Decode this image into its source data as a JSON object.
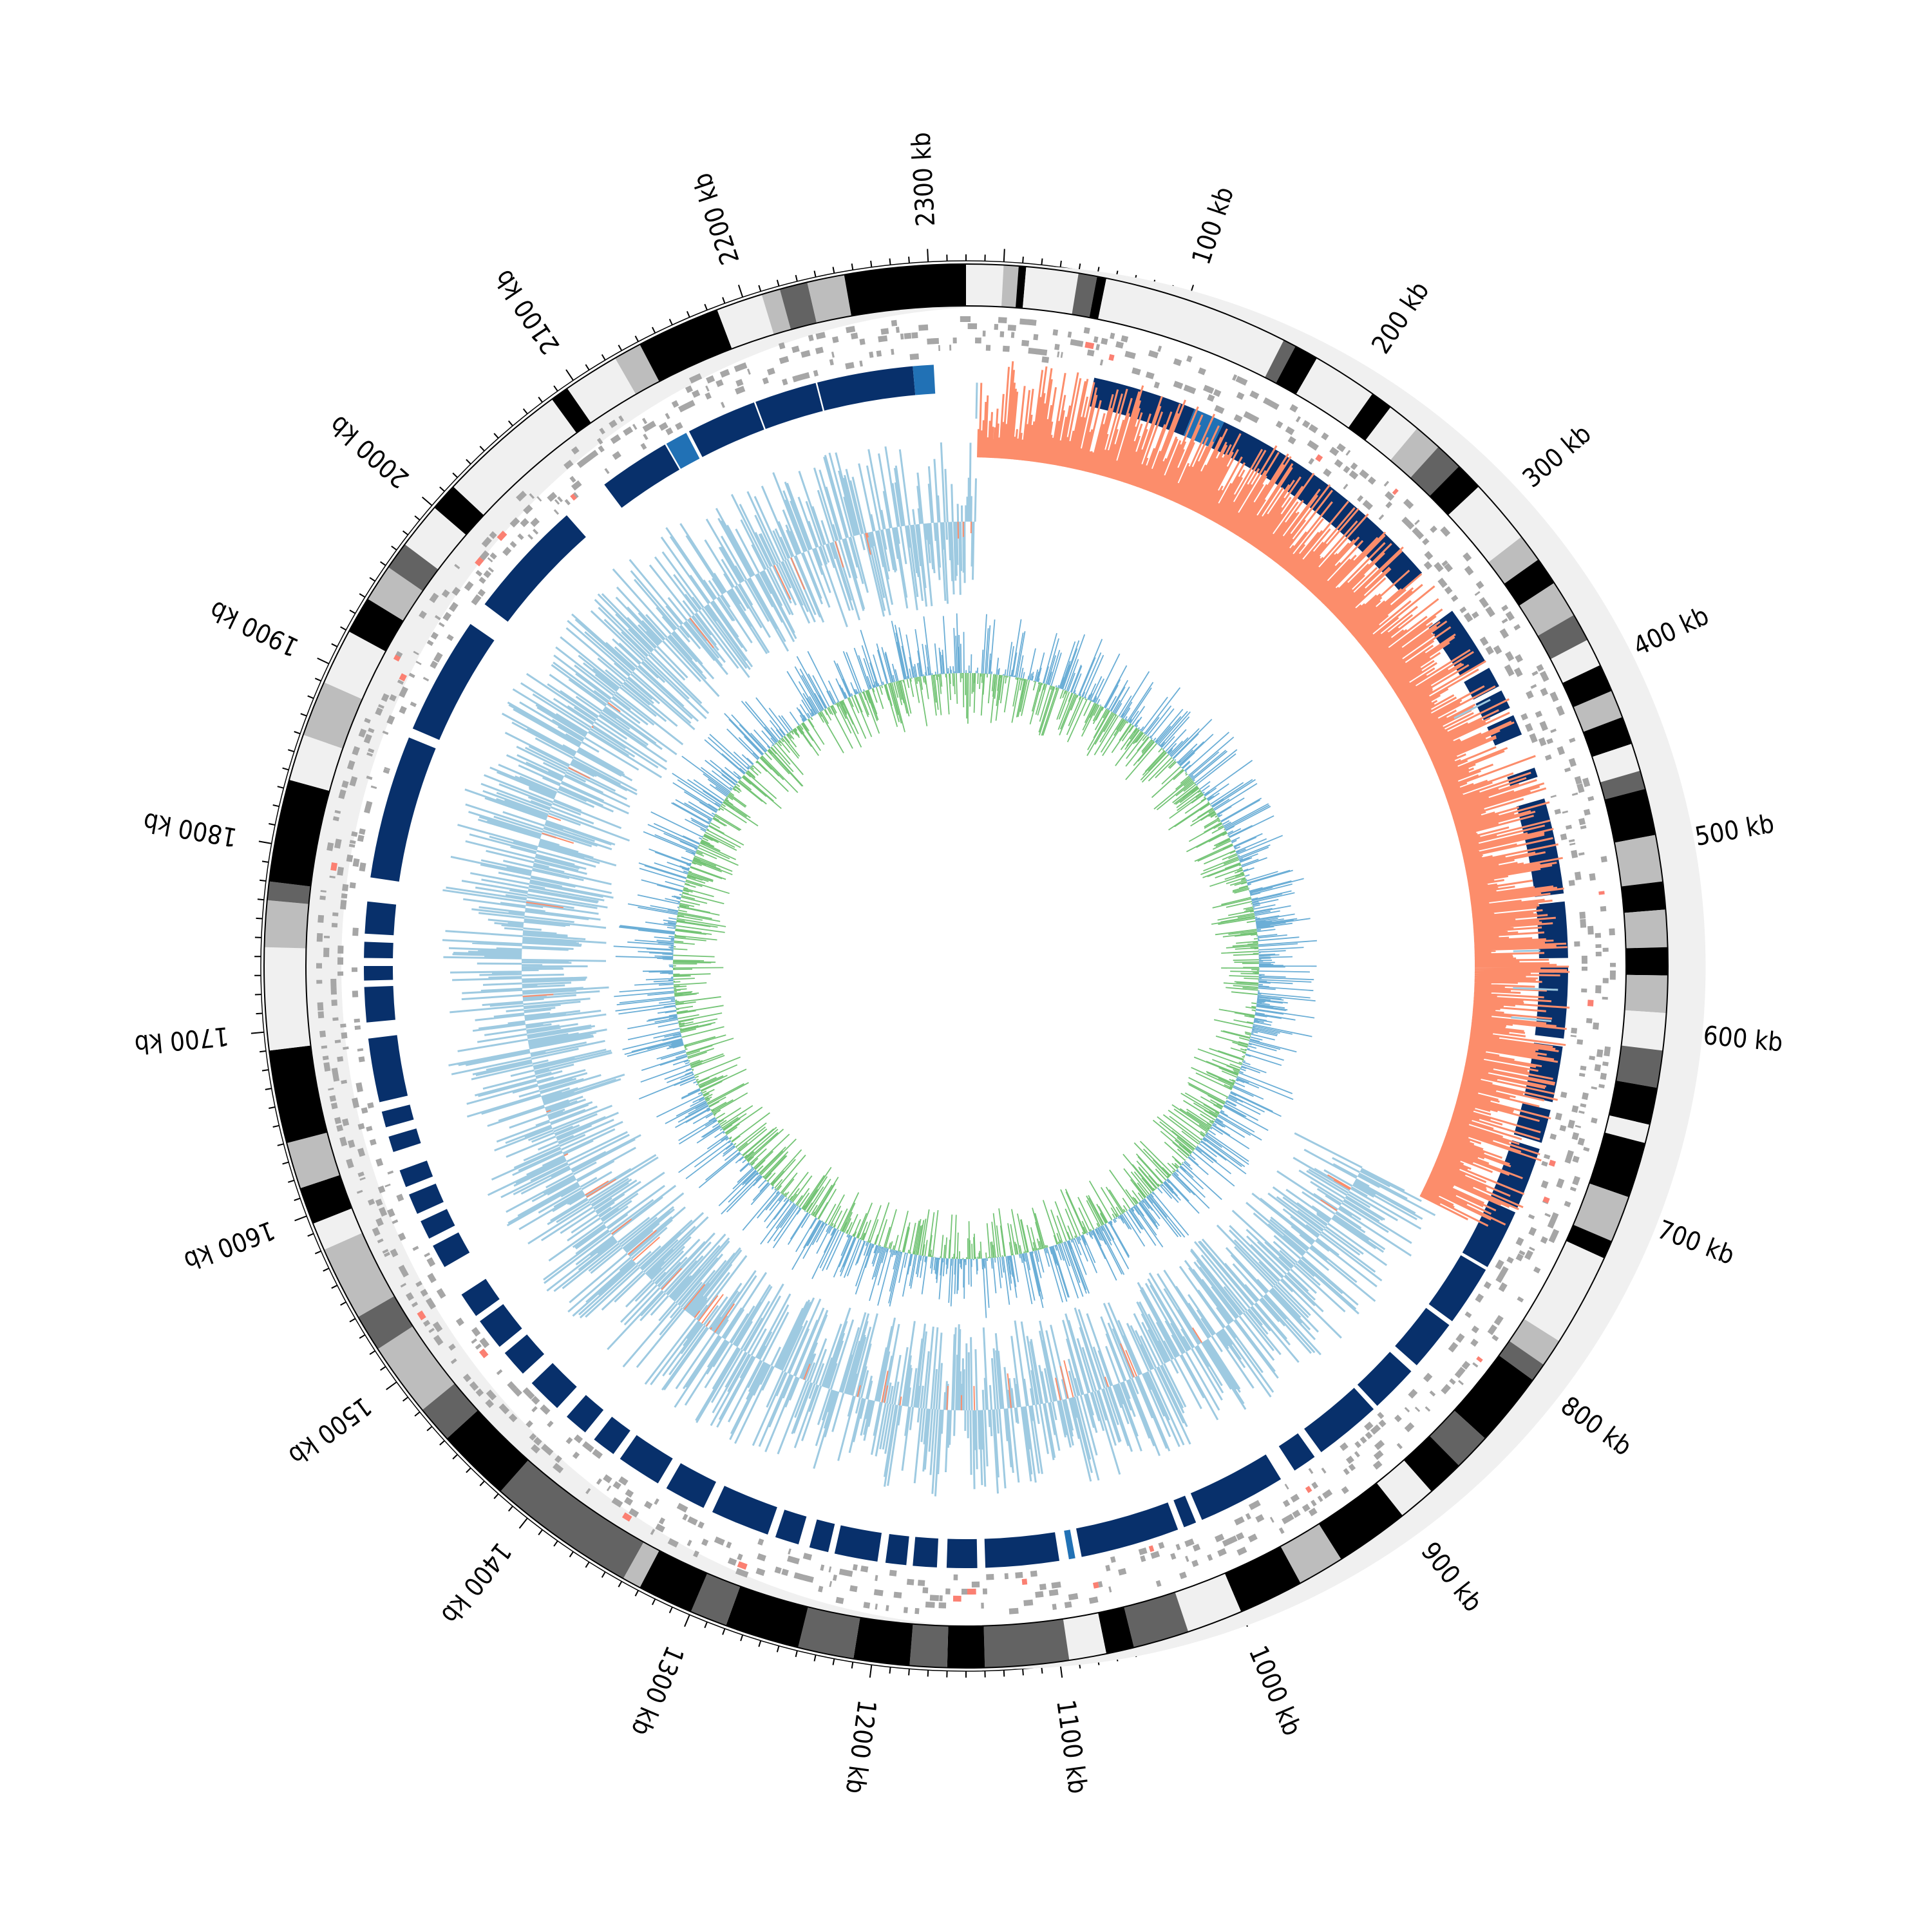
{
  "genome": {
    "total_kb": 2340,
    "start_offset_kb": 2320,
    "direction": "clockwise",
    "tick_labels": [
      {
        "kb": 100,
        "text": "100 kb"
      },
      {
        "kb": 200,
        "text": "200 kb"
      },
      {
        "kb": 300,
        "text": "300 kb"
      },
      {
        "kb": 400,
        "text": "400 kb"
      },
      {
        "kb": 500,
        "text": "500 kb"
      },
      {
        "kb": 600,
        "text": "600 kb"
      },
      {
        "kb": 700,
        "text": "700 kb"
      },
      {
        "kb": 800,
        "text": "800 kb"
      },
      {
        "kb": 900,
        "text": "900 kb"
      },
      {
        "kb": 1000,
        "text": "1000 kb"
      },
      {
        "kb": 1100,
        "text": "1100 kb"
      },
      {
        "kb": 1200,
        "text": "1200 kb"
      },
      {
        "kb": 1300,
        "text": "1300 kb"
      },
      {
        "kb": 1400,
        "text": "1400 kb"
      },
      {
        "kb": 1500,
        "text": "1500 kb"
      },
      {
        "kb": 1600,
        "text": "1600 kb"
      },
      {
        "kb": 1700,
        "text": "1700 kb"
      },
      {
        "kb": 1800,
        "text": "1800 kb"
      },
      {
        "kb": 1900,
        "text": "1900 kb"
      },
      {
        "kb": 2000,
        "text": "2000 kb"
      },
      {
        "kb": 2100,
        "text": "2100 kb"
      },
      {
        "kb": 2200,
        "text": "2200 kb"
      },
      {
        "kb": 2300,
        "text": "2300 kb"
      }
    ],
    "minor_tick_kb": 10
  },
  "colors": {
    "band_white": "#f0f0f0",
    "band_light": "#bdbdbd",
    "band_mid": "#636363",
    "band_black": "#000000",
    "gene_gray": "#a6a6a6",
    "gene_red": "#fb8072",
    "synteny_blue": "#08306b",
    "synteny_light_blue": "#2171b5",
    "skew_positive": "#fc8d6b",
    "skew_negative": "#9ecae1",
    "content_blue": "#6baed6",
    "content_green": "#74c476"
  },
  "tracks": {
    "karyotype": {
      "name": "karyotype-band-ring",
      "bands": [
        {
          "start": 2320,
          "end": 2340,
          "shade": "white"
        },
        {
          "start": 0,
          "end": 8,
          "shade": "light"
        },
        {
          "start": 8,
          "end": 12,
          "shade": "black"
        },
        {
          "start": 12,
          "end": 40,
          "shade": "white"
        },
        {
          "start": 40,
          "end": 50,
          "shade": "mid"
        },
        {
          "start": 50,
          "end": 55,
          "shade": "black"
        },
        {
          "start": 55,
          "end": 155,
          "shade": "white"
        },
        {
          "start": 155,
          "end": 162,
          "shade": "mid"
        },
        {
          "start": 162,
          "end": 175,
          "shade": "black"
        },
        {
          "start": 175,
          "end": 210,
          "shade": "white"
        },
        {
          "start": 210,
          "end": 222,
          "shade": "black"
        },
        {
          "start": 222,
          "end": 240,
          "shade": "white"
        },
        {
          "start": 240,
          "end": 255,
          "shade": "light"
        },
        {
          "start": 255,
          "end": 270,
          "shade": "mid"
        },
        {
          "start": 270,
          "end": 285,
          "shade": "black"
        },
        {
          "start": 285,
          "end": 320,
          "shade": "white"
        },
        {
          "start": 320,
          "end": 335,
          "shade": "light"
        },
        {
          "start": 335,
          "end": 350,
          "shade": "black"
        },
        {
          "start": 350,
          "end": 370,
          "shade": "light"
        },
        {
          "start": 370,
          "end": 385,
          "shade": "mid"
        },
        {
          "start": 385,
          "end": 400,
          "shade": "white"
        },
        {
          "start": 400,
          "end": 415,
          "shade": "black"
        },
        {
          "start": 415,
          "end": 430,
          "shade": "light"
        },
        {
          "start": 430,
          "end": 445,
          "shade": "black"
        },
        {
          "start": 445,
          "end": 460,
          "shade": "white"
        },
        {
          "start": 460,
          "end": 470,
          "shade": "mid"
        },
        {
          "start": 470,
          "end": 495,
          "shade": "black"
        },
        {
          "start": 495,
          "end": 520,
          "shade": "light"
        },
        {
          "start": 520,
          "end": 535,
          "shade": "black"
        },
        {
          "start": 535,
          "end": 555,
          "shade": "light"
        },
        {
          "start": 555,
          "end": 570,
          "shade": "black"
        },
        {
          "start": 570,
          "end": 590,
          "shade": "light"
        },
        {
          "start": 590,
          "end": 610,
          "shade": "white"
        },
        {
          "start": 610,
          "end": 630,
          "shade": "mid"
        },
        {
          "start": 630,
          "end": 650,
          "shade": "black"
        },
        {
          "start": 650,
          "end": 660,
          "shade": "white"
        },
        {
          "start": 660,
          "end": 690,
          "shade": "black"
        },
        {
          "start": 690,
          "end": 715,
          "shade": "light"
        },
        {
          "start": 715,
          "end": 725,
          "shade": "black"
        },
        {
          "start": 725,
          "end": 775,
          "shade": "white"
        },
        {
          "start": 775,
          "end": 790,
          "shade": "light"
        },
        {
          "start": 790,
          "end": 800,
          "shade": "mid"
        },
        {
          "start": 800,
          "end": 840,
          "shade": "black"
        },
        {
          "start": 840,
          "end": 860,
          "shade": "mid"
        },
        {
          "start": 860,
          "end": 880,
          "shade": "black"
        },
        {
          "start": 880,
          "end": 900,
          "shade": "white"
        },
        {
          "start": 900,
          "end": 940,
          "shade": "black"
        },
        {
          "start": 940,
          "end": 965,
          "shade": "light"
        },
        {
          "start": 965,
          "end": 1000,
          "shade": "black"
        },
        {
          "start": 1000,
          "end": 1030,
          "shade": "white"
        },
        {
          "start": 1030,
          "end": 1060,
          "shade": "mid"
        },
        {
          "start": 1060,
          "end": 1075,
          "shade": "black"
        },
        {
          "start": 1075,
          "end": 1095,
          "shade": "white"
        },
        {
          "start": 1095,
          "end": 1140,
          "shade": "mid"
        },
        {
          "start": 1140,
          "end": 1160,
          "shade": "black"
        },
        {
          "start": 1160,
          "end": 1180,
          "shade": "mid"
        },
        {
          "start": 1180,
          "end": 1210,
          "shade": "black"
        },
        {
          "start": 1210,
          "end": 1240,
          "shade": "mid"
        },
        {
          "start": 1240,
          "end": 1280,
          "shade": "black"
        },
        {
          "start": 1280,
          "end": 1300,
          "shade": "mid"
        },
        {
          "start": 1300,
          "end": 1330,
          "shade": "black"
        },
        {
          "start": 1330,
          "end": 1340,
          "shade": "light"
        },
        {
          "start": 1340,
          "end": 1420,
          "shade": "mid"
        },
        {
          "start": 1420,
          "end": 1460,
          "shade": "black"
        },
        {
          "start": 1460,
          "end": 1480,
          "shade": "mid"
        },
        {
          "start": 1480,
          "end": 1520,
          "shade": "light"
        },
        {
          "start": 1520,
          "end": 1540,
          "shade": "mid"
        },
        {
          "start": 1540,
          "end": 1580,
          "shade": "light"
        },
        {
          "start": 1580,
          "end": 1595,
          "shade": "white"
        },
        {
          "start": 1595,
          "end": 1615,
          "shade": "black"
        },
        {
          "start": 1615,
          "end": 1640,
          "shade": "light"
        },
        {
          "start": 1640,
          "end": 1690,
          "shade": "black"
        },
        {
          "start": 1690,
          "end": 1745,
          "shade": "white"
        },
        {
          "start": 1745,
          "end": 1770,
          "shade": "light"
        },
        {
          "start": 1770,
          "end": 1780,
          "shade": "mid"
        },
        {
          "start": 1780,
          "end": 1835,
          "shade": "black"
        },
        {
          "start": 1835,
          "end": 1860,
          "shade": "white"
        },
        {
          "start": 1860,
          "end": 1890,
          "shade": "light"
        },
        {
          "start": 1890,
          "end": 1920,
          "shade": "white"
        },
        {
          "start": 1920,
          "end": 1940,
          "shade": "black"
        },
        {
          "start": 1940,
          "end": 1960,
          "shade": "light"
        },
        {
          "start": 1960,
          "end": 1975,
          "shade": "mid"
        },
        {
          "start": 1975,
          "end": 2000,
          "shade": "white"
        },
        {
          "start": 2000,
          "end": 2015,
          "shade": "black"
        },
        {
          "start": 2015,
          "end": 2085,
          "shade": "white"
        },
        {
          "start": 2085,
          "end": 2095,
          "shade": "black"
        },
        {
          "start": 2095,
          "end": 2125,
          "shade": "white"
        },
        {
          "start": 2125,
          "end": 2140,
          "shade": "light"
        },
        {
          "start": 2140,
          "end": 2185,
          "shade": "black"
        },
        {
          "start": 2185,
          "end": 2210,
          "shade": "white"
        },
        {
          "start": 2210,
          "end": 2220,
          "shade": "light"
        },
        {
          "start": 2220,
          "end": 2235,
          "shade": "mid"
        },
        {
          "start": 2235,
          "end": 2255,
          "shade": "light"
        },
        {
          "start": 2255,
          "end": 2320,
          "shade": "black"
        }
      ]
    },
    "synteny": {
      "name": "synteny-block-ring",
      "blocks": [
        {
          "start": 2142,
          "end": 2186,
          "tone": "dark"
        },
        {
          "start": 2187,
          "end": 2226,
          "tone": "dark"
        },
        {
          "start": 2227,
          "end": 2287,
          "tone": "dark"
        },
        {
          "start": 2287,
          "end": 2300,
          "tone": "light"
        },
        {
          "start": 60,
          "end": 125,
          "tone": "dark"
        },
        {
          "start": 125,
          "end": 145,
          "tone": "light"
        },
        {
          "start": 145,
          "end": 300,
          "tone": "dark"
        },
        {
          "start": 330,
          "end": 368,
          "tone": "dark"
        },
        {
          "start": 372,
          "end": 385,
          "tone": "dark"
        },
        {
          "start": 388,
          "end": 400,
          "tone": "dark"
        },
        {
          "start": 405,
          "end": 418,
          "tone": "dark"
        },
        {
          "start": 440,
          "end": 446,
          "tone": "dark"
        },
        {
          "start": 460,
          "end": 520,
          "tone": "dark"
        },
        {
          "start": 525,
          "end": 560,
          "tone": "dark"
        },
        {
          "start": 565,
          "end": 610,
          "tone": "dark"
        },
        {
          "start": 615,
          "end": 650,
          "tone": "dark"
        },
        {
          "start": 655,
          "end": 676,
          "tone": "dark"
        },
        {
          "start": 680,
          "end": 720,
          "tone": "dark"
        },
        {
          "start": 722,
          "end": 760,
          "tone": "dark"
        },
        {
          "start": 762,
          "end": 800,
          "tone": "dark"
        },
        {
          "start": 803,
          "end": 835,
          "tone": "dark"
        },
        {
          "start": 840,
          "end": 870,
          "tone": "dark"
        },
        {
          "start": 873,
          "end": 915,
          "tone": "dark"
        },
        {
          "start": 920,
          "end": 935,
          "tone": "dark"
        },
        {
          "start": 945,
          "end": 1000,
          "tone": "dark"
        },
        {
          "start": 1004,
          "end": 1012,
          "tone": "dark"
        },
        {
          "start": 1016,
          "end": 1078,
          "tone": "dark"
        },
        {
          "start": 1082,
          "end": 1086,
          "tone": "light"
        },
        {
          "start": 1092,
          "end": 1138,
          "tone": "dark"
        },
        {
          "start": 1143,
          "end": 1162,
          "tone": "dark"
        },
        {
          "start": 1168,
          "end": 1183,
          "tone": "dark"
        },
        {
          "start": 1187,
          "end": 1200,
          "tone": "dark"
        },
        {
          "start": 1205,
          "end": 1232,
          "tone": "dark"
        },
        {
          "start": 1236,
          "end": 1248,
          "tone": "dark"
        },
        {
          "start": 1255,
          "end": 1270,
          "tone": "dark"
        },
        {
          "start": 1275,
          "end": 1312,
          "tone": "dark"
        },
        {
          "start": 1318,
          "end": 1344,
          "tone": "dark"
        },
        {
          "start": 1350,
          "end": 1378,
          "tone": "dark"
        },
        {
          "start": 1383,
          "end": 1398,
          "tone": "dark"
        },
        {
          "start": 1405,
          "end": 1420,
          "tone": "dark"
        },
        {
          "start": 1428,
          "end": 1450,
          "tone": "dark"
        },
        {
          "start": 1458,
          "end": 1475,
          "tone": "dark"
        },
        {
          "start": 1480,
          "end": 1500,
          "tone": "dark"
        },
        {
          "start": 1504,
          "end": 1520,
          "tone": "dark"
        },
        {
          "start": 1540,
          "end": 1555,
          "tone": "dark"
        },
        {
          "start": 1560,
          "end": 1572,
          "tone": "dark"
        },
        {
          "start": 1577,
          "end": 1590,
          "tone": "dark"
        },
        {
          "start": 1595,
          "end": 1606,
          "tone": "dark"
        },
        {
          "start": 1618,
          "end": 1628,
          "tone": "dark"
        },
        {
          "start": 1634,
          "end": 1644,
          "tone": "dark"
        },
        {
          "start": 1650,
          "end": 1690,
          "tone": "dark"
        },
        {
          "start": 1700,
          "end": 1722,
          "tone": "dark"
        },
        {
          "start": 1726,
          "end": 1735,
          "tone": "dark"
        },
        {
          "start": 1740,
          "end": 1750,
          "tone": "dark"
        },
        {
          "start": 1755,
          "end": 1775,
          "tone": "dark"
        },
        {
          "start": 1790,
          "end": 1880,
          "tone": "dark"
        },
        {
          "start": 1886,
          "end": 1960,
          "tone": "dark"
        },
        {
          "start": 1975,
          "end": 2050,
          "tone": "dark"
        },
        {
          "start": 2080,
          "end": 2125,
          "tone": "dark"
        },
        {
          "start": 2126,
          "end": 2140,
          "tone": "light"
        }
      ]
    },
    "skew": {
      "name": "gc-skew-ring",
      "positive_range": [
        0,
        740
      ],
      "spikes": [
        {
          "kb": 2327,
          "value": 0.8
        },
        {
          "kb": 390,
          "value": 0.9
        },
        {
          "kb": 580,
          "value": 1.0
        },
        {
          "kb": 600,
          "value": 0.9
        },
        {
          "kb": 555,
          "value": 0.6
        }
      ]
    },
    "content": {
      "name": "gc-content-ring",
      "series": [
        {
          "name": "positive",
          "color_key": "content_blue"
        },
        {
          "name": "negative",
          "color_key": "content_green"
        }
      ]
    }
  }
}
